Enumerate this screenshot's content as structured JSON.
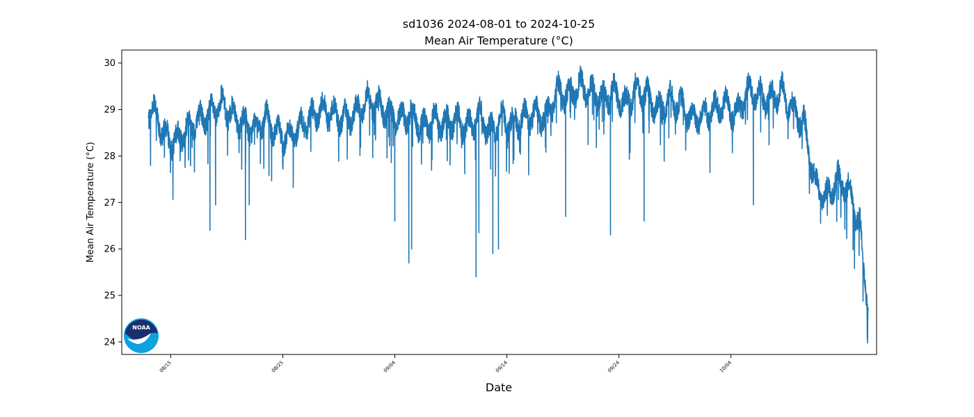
{
  "chart_data": {
    "type": "line",
    "title": "sd1036 2024-08-01 to 2024-10-25",
    "subtitle": "Mean Air Temperature (°C)",
    "xlabel": "Date",
    "ylabel": "Mean Air Temperature (°C)",
    "ylim": [
      23.73,
      30.28
    ],
    "xlim": [
      "2024-08-10T15:00",
      "2024-10-17T00:00"
    ],
    "yticks": [
      24,
      25,
      26,
      27,
      28,
      29,
      30
    ],
    "xticks": [
      "08/15",
      "08/25",
      "09/04",
      "09/14",
      "09/24",
      "10/04"
    ],
    "xtick_dates": [
      "2024-08-15",
      "2024-08-25",
      "2024-09-04",
      "2024-09-14",
      "2024-09-24",
      "2024-10-04"
    ],
    "grid": false,
    "line_color": "#1f77b4",
    "series": [
      {
        "x": [
          "2024-08-13",
          "2024-08-14",
          "2024-08-15",
          "2024-08-16",
          "2024-08-17",
          "2024-08-18",
          "2024-08-19",
          "2024-08-20",
          "2024-08-21",
          "2024-08-22",
          "2024-08-23",
          "2024-08-24",
          "2024-08-25",
          "2024-08-26",
          "2024-08-27",
          "2024-08-28",
          "2024-08-29",
          "2024-08-30",
          "2024-08-31",
          "2024-09-01",
          "2024-09-02",
          "2024-09-03",
          "2024-09-04",
          "2024-09-05",
          "2024-09-06",
          "2024-09-07",
          "2024-09-08",
          "2024-09-09",
          "2024-09-10",
          "2024-09-11",
          "2024-09-12",
          "2024-09-13",
          "2024-09-14",
          "2024-09-15",
          "2024-09-16",
          "2024-09-17",
          "2024-09-18",
          "2024-09-19",
          "2024-09-20",
          "2024-09-21",
          "2024-09-22",
          "2024-09-23",
          "2024-09-24",
          "2024-09-25",
          "2024-09-26",
          "2024-09-27",
          "2024-09-28",
          "2024-09-29",
          "2024-09-30",
          "2024-10-01",
          "2024-10-02",
          "2024-10-03",
          "2024-10-04",
          "2024-10-05",
          "2024-10-06",
          "2024-10-07",
          "2024-10-08",
          "2024-10-09",
          "2024-10-10",
          "2024-10-11",
          "2024-10-12",
          "2024-10-13",
          "2024-10-14",
          "2024-10-15",
          "2024-10-16"
        ],
        "y": [
          29.0,
          28.4,
          28.3,
          28.6,
          28.8,
          28.9,
          29.1,
          28.9,
          28.7,
          28.6,
          28.8,
          28.5,
          28.4,
          28.6,
          28.8,
          29.0,
          28.9,
          28.8,
          28.9,
          29.2,
          29.1,
          28.9,
          28.8,
          28.9,
          28.6,
          28.8,
          28.7,
          28.8,
          28.6,
          28.9,
          28.5,
          28.8,
          28.7,
          28.8,
          28.9,
          28.8,
          29.4,
          29.3,
          29.5,
          29.4,
          29.2,
          29.4,
          29.1,
          29.4,
          29.3,
          29.0,
          29.2,
          29.1,
          28.8,
          28.9,
          29.0,
          29.1,
          28.9,
          29.4,
          29.3,
          29.2,
          29.4,
          29.0,
          28.7,
          27.4,
          27.1,
          27.5,
          27.3,
          26.5,
          24.1
        ],
        "min_spikes": [
          {
            "x": "2024-08-18T12:00",
            "y": 26.4
          },
          {
            "x": "2024-08-19T00:00",
            "y": 26.95
          },
          {
            "x": "2024-08-21T16:00",
            "y": 26.2
          },
          {
            "x": "2024-08-22T00:00",
            "y": 26.95
          },
          {
            "x": "2024-09-04T00:00",
            "y": 26.6
          },
          {
            "x": "2024-09-05T06:00",
            "y": 25.7
          },
          {
            "x": "2024-09-05T12:00",
            "y": 26.0
          },
          {
            "x": "2024-09-11T06:00",
            "y": 25.4
          },
          {
            "x": "2024-09-11T12:00",
            "y": 26.35
          },
          {
            "x": "2024-09-12T18:00",
            "y": 25.9
          },
          {
            "x": "2024-09-13T06:00",
            "y": 26.0
          },
          {
            "x": "2024-09-19T06:00",
            "y": 26.7
          },
          {
            "x": "2024-09-23T06:00",
            "y": 26.3
          },
          {
            "x": "2024-09-26T06:00",
            "y": 26.6
          },
          {
            "x": "2024-10-06T00:00",
            "y": 26.95
          },
          {
            "x": "2024-10-16T04:00",
            "y": 24.05
          }
        ]
      }
    ]
  }
}
